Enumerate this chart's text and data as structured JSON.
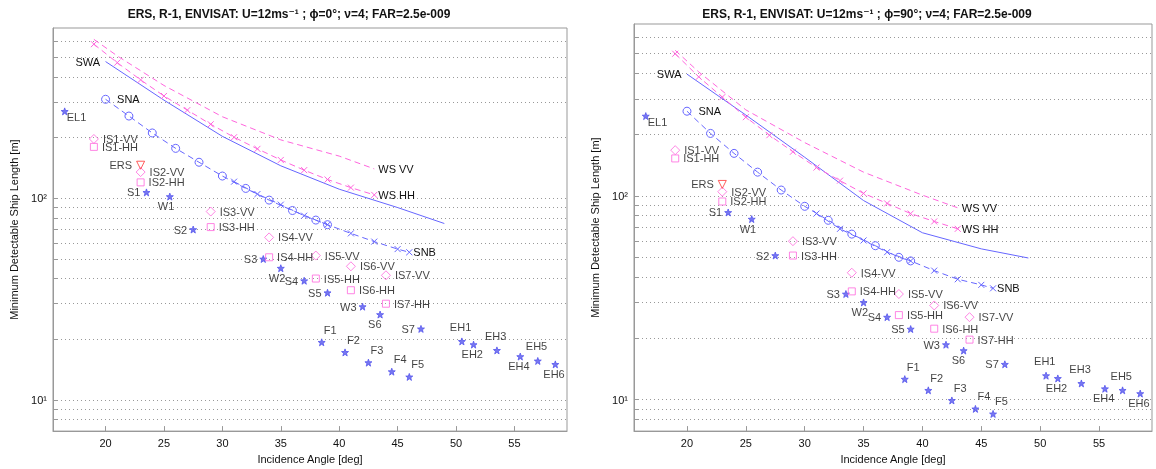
{
  "chart_data": [
    {
      "type": "scatter",
      "title": "ERS, R-1, ENVISAT: U=12ms⁻¹ ; ϕ=0°; ν=4; FAR=2.5e-009",
      "xlabel": "Incidence Angle [deg]",
      "ylabel": "Minimum Detectable Ship Length [m]",
      "log": "y",
      "grid": "y",
      "xlim": [
        15.5,
        59.5
      ],
      "xticks": [
        20,
        25,
        30,
        35,
        40,
        45,
        50,
        55
      ],
      "ylim": [
        7,
        700
      ],
      "yticks": [
        {
          "value": 8,
          "label": null
        },
        {
          "value": 9,
          "label": null
        },
        {
          "value": 10,
          "label": "10¹"
        },
        {
          "value": 20,
          "label": null
        },
        {
          "value": 30,
          "label": null
        },
        {
          "value": 40,
          "label": null
        },
        {
          "value": 50,
          "label": null
        },
        {
          "value": 60,
          "label": null
        },
        {
          "value": 70,
          "label": null
        },
        {
          "value": 80,
          "label": null
        },
        {
          "value": 90,
          "label": null
        },
        {
          "value": 100,
          "label": "10²"
        },
        {
          "value": 200,
          "label": null
        },
        {
          "value": 300,
          "label": null
        },
        {
          "value": 400,
          "label": null
        },
        {
          "value": 500,
          "label": null
        },
        {
          "value": 600,
          "label": null
        }
      ],
      "series": [
        {
          "type": "line",
          "name": "SWA",
          "color": "#6666ff",
          "line_style": "solid",
          "marker": "none",
          "x": [
            20,
            25,
            30,
            35,
            40,
            45,
            49
          ],
          "values": [
            477,
            307,
            203,
            145,
            111,
            90,
            75
          ]
        },
        {
          "type": "line",
          "name": "SNA",
          "color": "#6666ff",
          "line_style": "dashed",
          "marker": "circle",
          "x": [
            20,
            22,
            24,
            26,
            28,
            30,
            32,
            34,
            36,
            38,
            39
          ],
          "values": [
            310,
            256,
            211,
            177,
            151,
            129,
            112,
            98,
            87,
            78,
            74
          ]
        },
        {
          "type": "line",
          "name": "SNB",
          "color": "#6666ff",
          "line_style": "dashed",
          "marker": "cross",
          "x": [
            31,
            33,
            35,
            37,
            39,
            41,
            43,
            45,
            46
          ],
          "values": [
            121,
            105,
            93,
            82,
            74,
            67,
            61,
            56,
            54
          ]
        },
        {
          "type": "line",
          "name": "WS VV",
          "color": "#ff66dd",
          "line_style": "dashed",
          "marker": "none",
          "x": [
            19,
            21,
            25,
            30,
            35,
            40,
            43
          ],
          "values": [
            615,
            509,
            363,
            254,
            195,
            162,
            140
          ]
        },
        {
          "type": "line",
          "name": "WS HH",
          "color": "#ff66dd",
          "line_style": "dashed",
          "marker": "cross",
          "x": [
            19,
            21,
            23,
            25,
            27,
            29,
            31,
            33,
            35,
            37,
            39,
            41,
            43
          ],
          "values": [
            582,
            471,
            387,
            322,
            274,
            233,
            201,
            176,
            155,
            138,
            124,
            113,
            104
          ]
        },
        {
          "type": "scatter",
          "color": "#5555ee",
          "marker": "star",
          "x": [
            16.5,
            23.5,
            25.5,
            27.5,
            33.5,
            35,
            37,
            39,
            42,
            43.5,
            47,
            38.5,
            40.5,
            42.5,
            44.5,
            46,
            50.5,
            51.5,
            53.5,
            55.5,
            57,
            58.5
          ],
          "values": [
            270,
            107,
            102,
            70,
            50,
            45,
            39,
            34,
            29,
            26.5,
            22.5,
            19.3,
            17.2,
            15.3,
            13.8,
            13,
            19.5,
            18.8,
            17.6,
            16.4,
            15.6,
            15
          ],
          "value_labels": [
            "EL1",
            "S1",
            "W1",
            "S2",
            "S3",
            "W2",
            "S4",
            "S5",
            "W3",
            "S6",
            "S7",
            "F1",
            "F2",
            "F3",
            "F4",
            "F5",
            "EH1",
            "EH2",
            "EH3",
            "EH4",
            "EH5",
            "EH6"
          ]
        },
        {
          "type": "scatter",
          "color": "#ff66dd",
          "marker": "diamond",
          "x": [
            19,
            23,
            29,
            34,
            38,
            41,
            44
          ],
          "values": [
            197,
            135,
            86,
            64,
            52,
            46,
            41.5
          ],
          "value_labels": [
            "IS1-VV",
            "IS2-VV",
            "IS3-VV",
            "IS4-VV",
            "IS5-VV",
            "IS6-VV",
            "IS7-VV"
          ]
        },
        {
          "type": "scatter",
          "color": "#ff66dd",
          "marker": "square",
          "x": [
            19,
            23,
            29,
            34,
            38,
            41,
            44
          ],
          "values": [
            180,
            120,
            72,
            51,
            40,
            35,
            30
          ],
          "value_labels": [
            "IS1-HH",
            "IS2-HH",
            "IS3-HH",
            "IS4-HH",
            "IS5-HH",
            "IS6-HH",
            "IS7-HH"
          ]
        },
        {
          "type": "scatter",
          "color": "#ff3333",
          "marker": "triangle",
          "x": [
            23
          ],
          "values": [
            146
          ],
          "value_labels": [
            "ERS"
          ]
        }
      ]
    },
    {
      "type": "scatter",
      "title": "ERS, R-1, ENVISAT: U=12ms⁻¹ ; ϕ=90°; ν=4; FAR=2.5e-009",
      "xlabel": "Incidence Angle [deg]",
      "ylabel": "Minimum Detectable Ship Length [m]",
      "log": "y",
      "grid": "y",
      "xlim": [
        15.5,
        59.5
      ],
      "xticks": [
        20,
        25,
        30,
        35,
        40,
        45,
        50,
        55
      ],
      "ylim": [
        7,
        700
      ],
      "yticks": [
        {
          "value": 8,
          "label": null
        },
        {
          "value": 9,
          "label": null
        },
        {
          "value": 10,
          "label": "10¹"
        },
        {
          "value": 20,
          "label": null
        },
        {
          "value": 30,
          "label": null
        },
        {
          "value": 40,
          "label": null
        },
        {
          "value": 50,
          "label": null
        },
        {
          "value": 60,
          "label": null
        },
        {
          "value": 70,
          "label": null
        },
        {
          "value": 80,
          "label": null
        },
        {
          "value": 90,
          "label": null
        },
        {
          "value": 100,
          "label": "10²"
        },
        {
          "value": 200,
          "label": null
        },
        {
          "value": 300,
          "label": null
        },
        {
          "value": 400,
          "label": null
        },
        {
          "value": 500,
          "label": null
        },
        {
          "value": 600,
          "label": null
        }
      ],
      "series": [
        {
          "type": "line",
          "name": "SWA",
          "color": "#6666ff",
          "line_style": "solid",
          "marker": "none",
          "x": [
            20,
            25,
            30,
            35,
            40,
            45,
            49
          ],
          "values": [
            397,
            250,
            155,
            95,
            66,
            55,
            49.6
          ]
        },
        {
          "type": "line",
          "name": "SNA",
          "color": "#6666ff",
          "line_style": "dashed",
          "marker": "circle",
          "x": [
            20,
            22,
            24,
            26,
            28,
            30,
            32,
            34,
            36,
            38,
            39
          ],
          "values": [
            261,
            203,
            162,
            131,
            107,
            89,
            76,
            65,
            57,
            50,
            48
          ]
        },
        {
          "type": "line",
          "name": "SNB",
          "color": "#6666ff",
          "line_style": "dashed",
          "marker": "cross",
          "x": [
            31,
            33,
            35,
            37,
            39,
            41,
            43,
            45,
            46
          ],
          "values": [
            82,
            69,
            60.5,
            53,
            48,
            43,
            39,
            36.6,
            35.2
          ]
        },
        {
          "type": "line",
          "name": "WS VV",
          "color": "#ff66dd",
          "line_style": "dashed",
          "marker": "none",
          "x": [
            19,
            21,
            25,
            30,
            35,
            40,
            43
          ],
          "values": [
            520,
            407,
            265,
            183,
            131,
            101,
            87.5
          ]
        },
        {
          "type": "line",
          "name": "WS HH",
          "color": "#ff66dd",
          "line_style": "dashed",
          "marker": "cross",
          "x": [
            19,
            21,
            23,
            25,
            27,
            29,
            31,
            33,
            35,
            37,
            39,
            41,
            43
          ],
          "values": [
            500,
            385,
            306,
            244,
            199,
            165,
            138,
            119,
            103,
            92,
            82,
            75,
            69
          ]
        },
        {
          "type": "scatter",
          "color": "#5555ee",
          "marker": "star",
          "x": [
            16.5,
            23.5,
            25.5,
            27.5,
            33.5,
            35,
            37,
            39,
            42,
            43.5,
            47,
            38.5,
            40.5,
            42.5,
            44.5,
            46,
            50.5,
            51.5,
            53.5,
            55.5,
            57,
            58.5
          ],
          "values": [
            247,
            83,
            77,
            51,
            33,
            30,
            25.4,
            22.2,
            18.6,
            17.4,
            14.9,
            12.6,
            11.1,
            9.9,
            9,
            8.5,
            13.1,
            12.7,
            12,
            11.3,
            11.1,
            10.7
          ],
          "value_labels": [
            "EL1",
            "S1",
            "W1",
            "S2",
            "S3",
            "W2",
            "S4",
            "S5",
            "W3",
            "S6",
            "S7",
            "F1",
            "F2",
            "F3",
            "F4",
            "F5",
            "EH1",
            "EH2",
            "EH3",
            "EH4",
            "EH5",
            "EH6"
          ]
        },
        {
          "type": "scatter",
          "color": "#ff66dd",
          "marker": "diamond",
          "x": [
            19,
            23,
            29,
            34,
            38,
            41,
            44
          ],
          "values": [
            168,
            105,
            60,
            42,
            33,
            29,
            25.4
          ],
          "value_labels": [
            "IS1-VV",
            "IS2-VV",
            "IS3-VV",
            "IS4-VV",
            "IS5-VV",
            "IS6-VV",
            "IS7-VV"
          ]
        },
        {
          "type": "scatter",
          "color": "#ff66dd",
          "marker": "square",
          "x": [
            19,
            23,
            29,
            34,
            38,
            41,
            44
          ],
          "values": [
            153,
            94,
            51,
            34,
            26,
            22.3,
            19.7
          ],
          "value_labels": [
            "IS1-HH",
            "IS2-HH",
            "IS3-HH",
            "IS4-HH",
            "IS5-HH",
            "IS6-HH",
            "IS7-HH"
          ]
        },
        {
          "type": "scatter",
          "color": "#ff3333",
          "marker": "triangle",
          "x": [
            23
          ],
          "values": [
            114
          ],
          "value_labels": [
            "ERS"
          ]
        }
      ]
    }
  ]
}
